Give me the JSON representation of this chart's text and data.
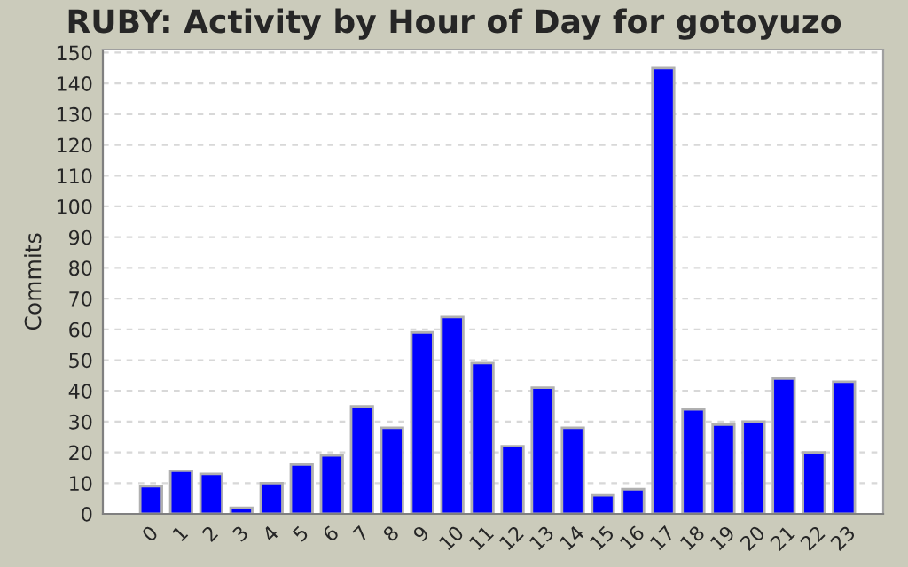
{
  "chart_data": {
    "type": "bar",
    "title": "RUBY: Activity by Hour of Day for gotoyuzo",
    "ylabel": "Commits",
    "categories": [
      "0",
      "1",
      "2",
      "3",
      "4",
      "5",
      "6",
      "7",
      "8",
      "9",
      "10",
      "11",
      "12",
      "13",
      "14",
      "15",
      "16",
      "17",
      "18",
      "19",
      "20",
      "21",
      "22",
      "23"
    ],
    "values": [
      9,
      14,
      13,
      2,
      10,
      16,
      19,
      35,
      28,
      59,
      64,
      49,
      22,
      41,
      28,
      6,
      8,
      145,
      34,
      29,
      30,
      44,
      20,
      43
    ],
    "color": "#0000ff",
    "ylim": [
      0,
      151
    ],
    "yticks": [
      0,
      10,
      20,
      30,
      40,
      50,
      60,
      70,
      80,
      90,
      100,
      110,
      120,
      130,
      140,
      150
    ],
    "grid": "y",
    "legend": false
  }
}
